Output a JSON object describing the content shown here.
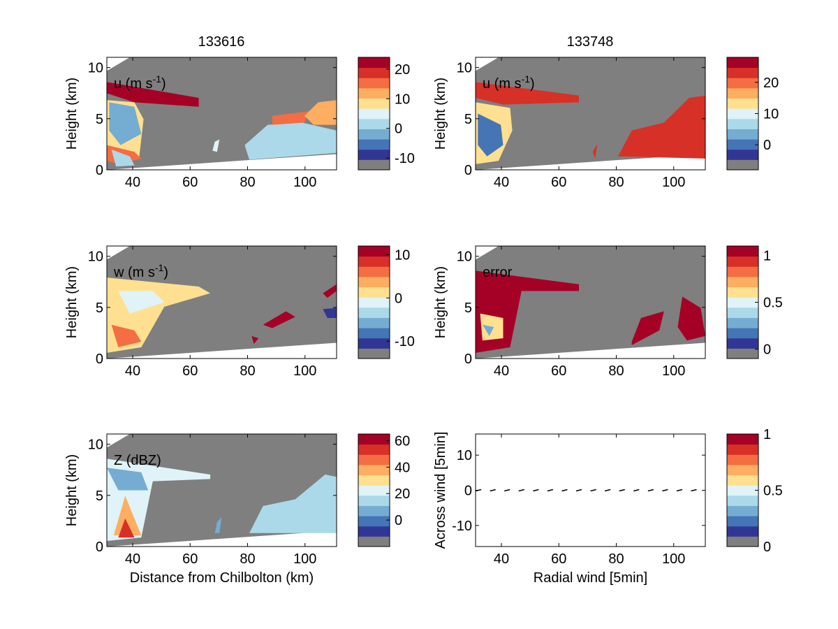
{
  "figure": {
    "column_titles": [
      "133616",
      "133748"
    ]
  },
  "colormap": [
    "#7f7f7f",
    "#313695",
    "#4575b4",
    "#74add1",
    "#abd9e9",
    "#e0f3f8",
    "#fee090",
    "#fdae61",
    "#f46d43",
    "#d73027",
    "#a50026"
  ],
  "chart_data": [
    {
      "type": "heatmap",
      "panel": "u-133616",
      "annotation": "u (m s",
      "annotation_sup": "-1",
      "annotation_tail": ")",
      "xlabel": "",
      "ylabel": "Height (km)",
      "xlim": [
        31,
        111
      ],
      "ylim": [
        0,
        11
      ],
      "xticks": [
        "40",
        "60",
        "80",
        "100"
      ],
      "yticks": [
        "0",
        "5",
        "10"
      ],
      "colorbar": {
        "ticks": [
          "-10",
          "0",
          "10",
          "20"
        ],
        "range": [
          -14,
          24
        ]
      }
    },
    {
      "type": "heatmap",
      "panel": "u-133748",
      "annotation": "u (m s",
      "annotation_sup": "-1",
      "annotation_tail": ")",
      "xlabel": "",
      "ylabel": "Height (km)",
      "xlim": [
        31,
        111
      ],
      "ylim": [
        0,
        11
      ],
      "xticks": [
        "40",
        "60",
        "80",
        "100"
      ],
      "yticks": [
        "0",
        "5",
        "10"
      ],
      "colorbar": {
        "ticks": [
          "0",
          "10",
          "20"
        ],
        "range": [
          -8,
          28
        ]
      }
    },
    {
      "type": "heatmap",
      "panel": "w-133616",
      "annotation": "w (m s",
      "annotation_sup": "-1",
      "annotation_tail": ")",
      "xlabel": "",
      "ylabel": "Height (km)",
      "xlim": [
        31,
        111
      ],
      "ylim": [
        0,
        11
      ],
      "xticks": [
        "40",
        "60",
        "80",
        "100"
      ],
      "yticks": [
        "0",
        "5",
        "10"
      ],
      "colorbar": {
        "ticks": [
          "-10",
          "0",
          "10"
        ],
        "range": [
          -14,
          12
        ]
      }
    },
    {
      "type": "heatmap",
      "panel": "error-133748",
      "annotation": "error",
      "annotation_sup": "",
      "annotation_tail": "",
      "xlabel": "",
      "ylabel": "Height (km)",
      "xlim": [
        31,
        111
      ],
      "ylim": [
        0,
        11
      ],
      "xticks": [
        "40",
        "60",
        "80",
        "100"
      ],
      "yticks": [
        "0",
        "5",
        "10"
      ],
      "colorbar": {
        "ticks": [
          "0",
          "0.5",
          "1"
        ],
        "range": [
          -0.1,
          1.1
        ]
      }
    },
    {
      "type": "heatmap",
      "panel": "Z-133616",
      "annotation": "Z (dBZ)",
      "annotation_sup": "",
      "annotation_tail": "",
      "xlabel": "Distance from Chilbolton (km)",
      "ylabel": "Height (km)",
      "xlim": [
        31,
        111
      ],
      "ylim": [
        0,
        11
      ],
      "xticks": [
        "40",
        "60",
        "80",
        "100"
      ],
      "yticks": [
        "0",
        "5",
        "10"
      ],
      "colorbar": {
        "ticks": [
          "0",
          "20",
          "40",
          "60"
        ],
        "range": [
          -20,
          65
        ]
      }
    },
    {
      "type": "scatter",
      "panel": "vectors-133748",
      "annotation": "",
      "annotation_sup": "",
      "annotation_tail": "",
      "xlabel": "Radial wind [5min]",
      "ylabel": "Across wind [5min]",
      "xlim": [
        31,
        111
      ],
      "ylim": [
        -16,
        16
      ],
      "xticks": [
        "40",
        "60",
        "80",
        "100"
      ],
      "yticks": [
        "-10",
        "0",
        "10"
      ],
      "colorbar": {
        "ticks": [
          "0",
          "0.5",
          "1"
        ],
        "range": [
          0,
          1
        ]
      },
      "x": [
        32,
        37,
        42,
        47,
        52,
        57,
        62,
        67,
        72,
        77,
        82,
        87,
        92,
        97,
        102,
        107
      ],
      "y": [
        0,
        0,
        0,
        0,
        0,
        0,
        0,
        0,
        0,
        0,
        0,
        0,
        0,
        0,
        0,
        0
      ]
    }
  ]
}
